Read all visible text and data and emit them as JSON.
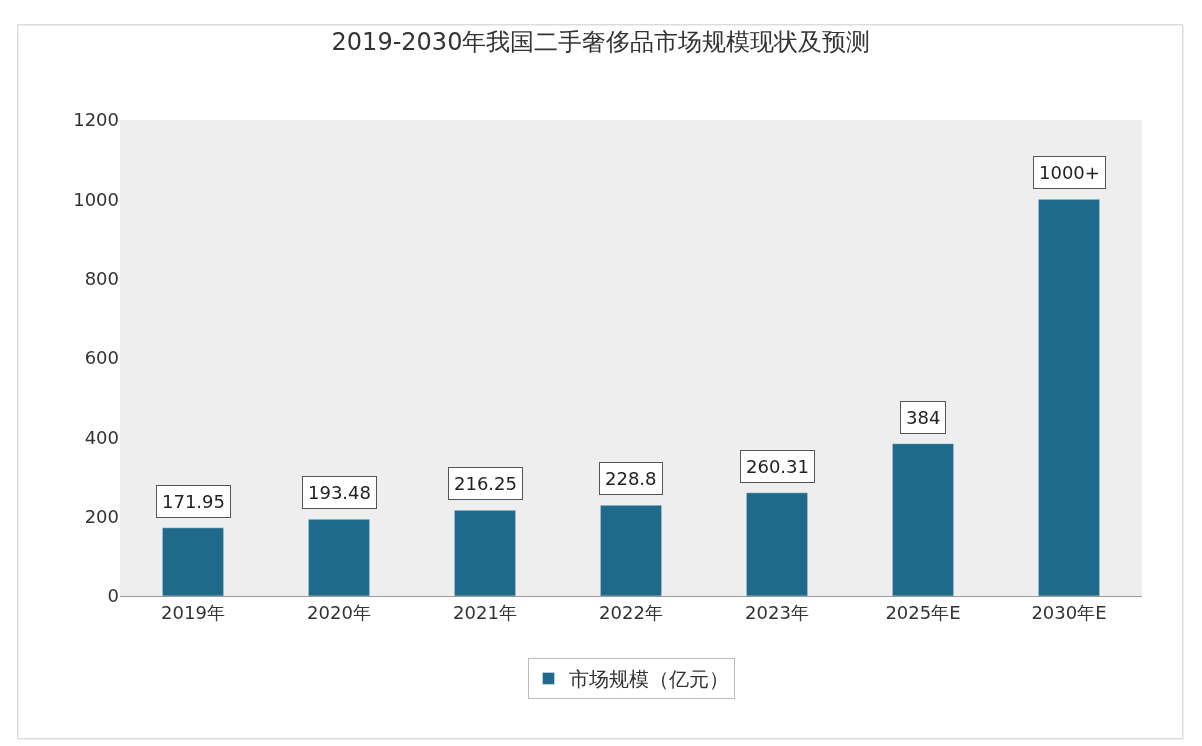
{
  "chart_data": {
    "type": "bar",
    "title": "2019-2030年我国二手奢侈品市场规模现状及预测",
    "categories": [
      "2019年",
      "2020年",
      "2021年",
      "2022年",
      "2023年",
      "2025年E",
      "2030年E"
    ],
    "series": [
      {
        "name": "市场规模（亿元）",
        "color": "#1f6a8a",
        "values": [
          171.95,
          193.48,
          216.25,
          228.8,
          260.31,
          384,
          1000
        ],
        "value_labels": [
          "171.95",
          "193.48",
          "216.25",
          "228.8",
          "260.31",
          "384",
          "1000+"
        ]
      }
    ],
    "ylim": [
      0,
      1200
    ],
    "yticks": [
      0,
      200,
      400,
      600,
      800,
      1000,
      1200
    ],
    "grid": false,
    "legend": "bottom"
  }
}
